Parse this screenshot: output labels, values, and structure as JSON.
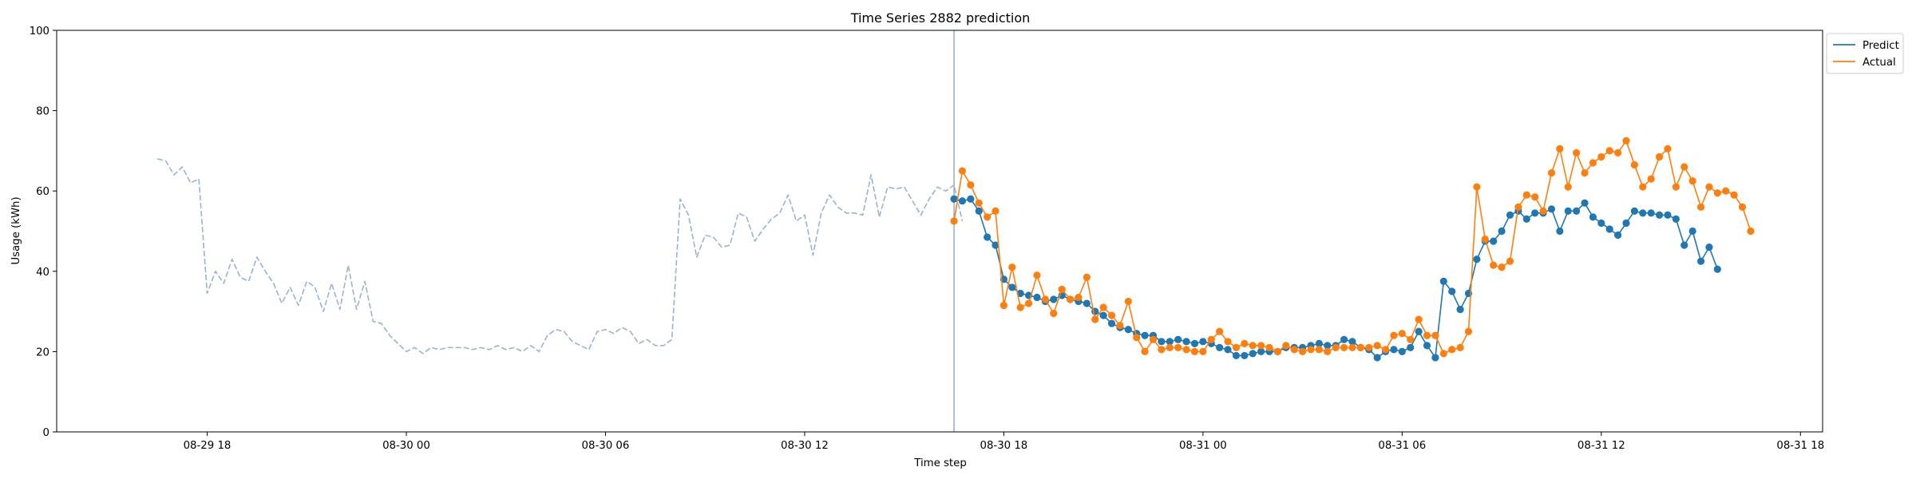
{
  "chart_data": {
    "type": "line",
    "title": "Time Series 2882 prediction",
    "xlabel": "Time step",
    "ylabel": "Usage (kWh)",
    "ylim": [
      0,
      100
    ],
    "yticks": [
      0,
      20,
      40,
      60,
      80,
      100
    ],
    "xlim": [
      "2024-08-29 13:28",
      "2024-08-31 18:40"
    ],
    "xticks": [
      {
        "t": "2024-08-29 18:00",
        "label": "08-29 18"
      },
      {
        "t": "2024-08-30 00:00",
        "label": "08-30 00"
      },
      {
        "t": "2024-08-30 06:00",
        "label": "08-30 06"
      },
      {
        "t": "2024-08-30 12:00",
        "label": "08-30 12"
      },
      {
        "t": "2024-08-30 18:00",
        "label": "08-30 18"
      },
      {
        "t": "2024-08-31 00:00",
        "label": "08-31 00"
      },
      {
        "t": "2024-08-31 06:00",
        "label": "08-31 06"
      },
      {
        "t": "2024-08-31 12:00",
        "label": "08-31 12"
      },
      {
        "t": "2024-08-31 18:00",
        "label": "08-31 18"
      }
    ],
    "time_start": "2024-08-29 16:30",
    "time_step_minutes": 15,
    "split_time": "2024-08-30 16:30",
    "grid": false,
    "legend_position": "top-right, outside",
    "series": [
      {
        "name": "",
        "style": "dashed",
        "color": "#9ab3cf",
        "values": [
          68,
          67.5,
          64,
          66,
          62,
          63,
          34.5,
          40,
          37,
          43,
          38.5,
          37.5,
          43.5,
          40,
          37,
          32,
          36,
          31.5,
          37.5,
          36,
          30,
          37,
          30.5,
          41.5,
          30.5,
          37.5,
          27.5,
          27,
          24,
          22,
          20,
          21,
          19.5,
          21,
          20.5,
          21,
          21,
          21,
          20.5,
          21,
          20.5,
          21.5,
          20.5,
          21,
          20,
          21.5,
          20,
          24,
          25.5,
          25,
          22.5,
          21.5,
          20.5,
          25,
          25.5,
          24.5,
          26,
          25,
          22,
          23,
          21.5,
          21.5,
          23,
          58,
          54,
          43.5,
          49,
          48.5,
          46,
          46.5,
          54.5,
          53.5,
          47.5,
          50.5,
          53,
          54.5,
          59,
          52.5,
          54,
          44,
          54.5,
          59,
          56,
          54.5,
          54.5,
          54,
          64,
          53.5,
          61,
          60.5,
          61,
          57.5,
          54,
          58,
          61,
          60,
          61.5,
          52.5
        ]
      },
      {
        "name": "Predict",
        "style": "solid-markers",
        "color": "#1f77b4",
        "values": [
          58,
          57.5,
          58,
          55,
          48.5,
          46.5,
          38,
          36,
          34.5,
          34,
          33.5,
          32.5,
          33,
          34,
          33,
          32.5,
          32,
          30,
          29,
          27,
          26,
          25.5,
          24.5,
          24,
          24,
          22.5,
          22.5,
          23,
          22.5,
          22,
          22.5,
          22,
          21,
          20.5,
          19,
          19,
          19.5,
          20,
          20,
          20,
          21,
          21,
          21,
          21.5,
          22,
          21.5,
          21.5,
          23,
          22.5,
          21,
          20.5,
          18.5,
          20,
          20.5,
          20,
          21,
          25,
          21.5,
          18.5,
          37.5,
          35,
          30.5,
          34.5,
          43,
          47.5,
          47.5,
          50,
          54,
          55,
          53,
          54.5,
          54.5,
          55.5,
          50,
          55,
          55,
          57,
          53.5,
          52,
          50.5,
          49,
          52,
          55,
          54.5,
          54.5,
          54,
          54,
          53,
          46.5,
          50,
          42.5,
          46,
          40.5
        ]
      },
      {
        "name": "Actual",
        "style": "solid-markers",
        "color": "#ff7f0e",
        "values": [
          52.5,
          65,
          61.5,
          57,
          53.5,
          55,
          31.5,
          41,
          31,
          32,
          39,
          33,
          29.5,
          35.5,
          33,
          33.5,
          38.5,
          28,
          31,
          29,
          26.5,
          32.5,
          23.5,
          20,
          23,
          20.5,
          21,
          21,
          20.5,
          20,
          20,
          23,
          25,
          22.5,
          21,
          22,
          21.5,
          21.5,
          21,
          20,
          21.5,
          20.5,
          20,
          20.5,
          20.5,
          20,
          21,
          21,
          21,
          21,
          21,
          21.5,
          20.5,
          24,
          24.5,
          23,
          28,
          24,
          24,
          19.5,
          20.5,
          21,
          25,
          61,
          48,
          41.5,
          41,
          42.5,
          56,
          59,
          58.5,
          55,
          64.5,
          70.5,
          61,
          69.5,
          64.5,
          67,
          68.5,
          70,
          69.5,
          72.5,
          66.5,
          61,
          63,
          68.5,
          70.5,
          61,
          66,
          62.5,
          56,
          61,
          59.5,
          60,
          59,
          56,
          50
        ]
      }
    ]
  }
}
